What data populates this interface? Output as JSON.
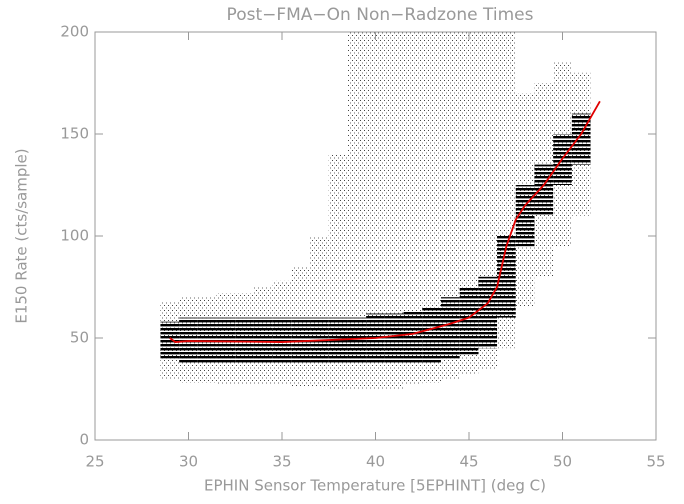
{
  "chart_data": {
    "type": "scatter",
    "title": "Post−FMA−On Non−Radzone Times",
    "x_label": "EPHIN Sensor Temperature [5EPHINT] (deg C)",
    "y_label": "E150 Rate (cts/sample)",
    "xlim": [
      25,
      55
    ],
    "ylim": [
      0,
      200
    ],
    "xticks": [
      25,
      30,
      35,
      40,
      45,
      50,
      55
    ],
    "yticks": [
      0,
      50,
      100,
      150,
      200
    ],
    "axis_color": "#999999",
    "series": [
      {
        "type": "range",
        "color": "#b0b0b0",
        "x": [
          29,
          30,
          31,
          32,
          33,
          34,
          35,
          36,
          37,
          38,
          39,
          40,
          41,
          42,
          43,
          44,
          45,
          46,
          47,
          48,
          49,
          50,
          51
        ],
        "low": [
          30,
          28,
          28,
          27,
          27,
          27,
          27,
          26,
          26,
          25,
          25,
          25,
          25,
          27,
          28,
          30,
          32,
          35,
          45,
          65,
          80,
          95,
          110
        ],
        "high": [
          68,
          70,
          70,
          72,
          72,
          75,
          78,
          85,
          100,
          140,
          200,
          200,
          200,
          200,
          200,
          200,
          200,
          200,
          200,
          170,
          175,
          185,
          180
        ]
      },
      {
        "type": "range",
        "color": "#000000",
        "x": [
          29,
          30,
          31,
          32,
          33,
          34,
          35,
          36,
          37,
          38,
          39,
          40,
          41,
          42,
          43,
          44,
          45,
          46,
          47,
          48,
          49,
          50,
          51
        ],
        "low": [
          40,
          38,
          38,
          38,
          38,
          38,
          38,
          38,
          38,
          38,
          38,
          38,
          38,
          38,
          38,
          40,
          42,
          45,
          60,
          95,
          110,
          125,
          135
        ],
        "high": [
          58,
          60,
          60,
          60,
          60,
          60,
          60,
          60,
          60,
          60,
          60,
          62,
          62,
          63,
          65,
          70,
          75,
          80,
          100,
          125,
          135,
          150,
          160
        ]
      },
      {
        "type": "line",
        "color": "#e00000",
        "x": [
          29,
          29.3,
          30,
          35,
          40,
          42,
          44,
          45,
          46,
          46.5,
          47,
          47.5,
          48,
          49,
          50,
          51,
          52
        ],
        "values": [
          50,
          48,
          48.5,
          48,
          50,
          52,
          57,
          60,
          67,
          75,
          95,
          108,
          115,
          125,
          138,
          150,
          166
        ]
      }
    ]
  }
}
